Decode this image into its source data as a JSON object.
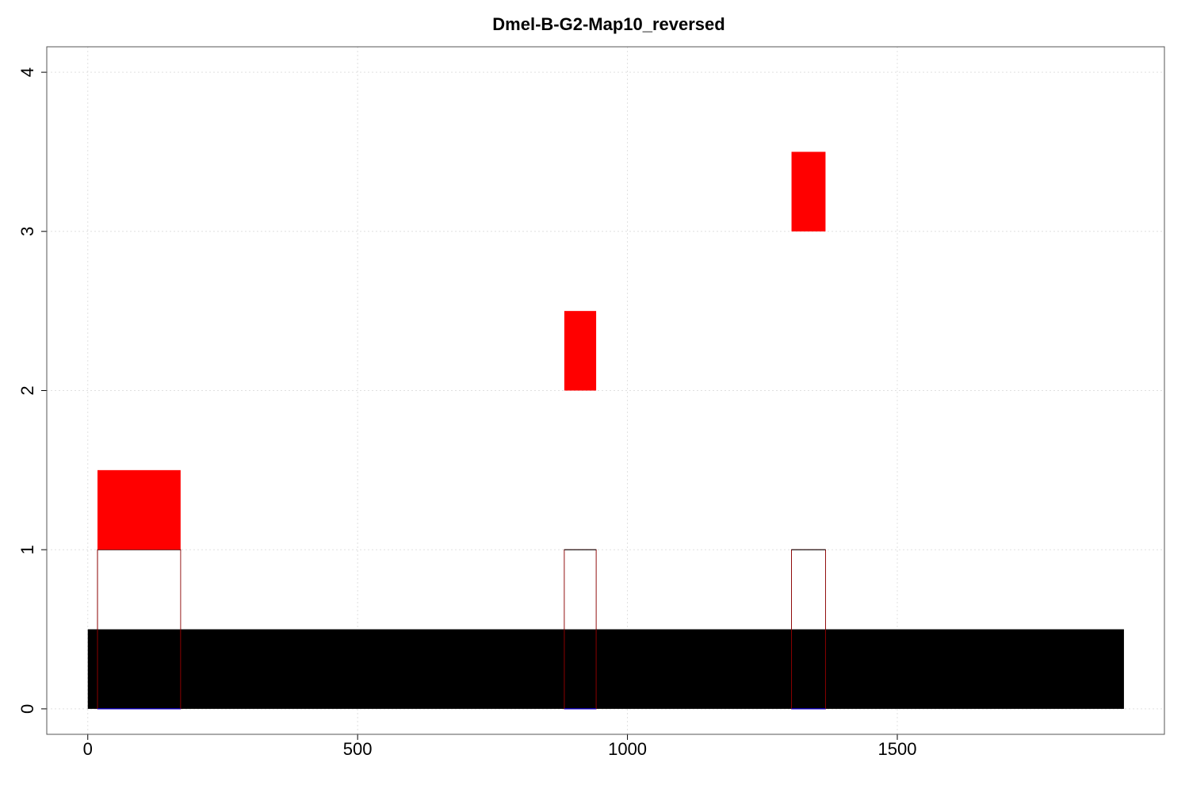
{
  "chart_data": {
    "type": "bar",
    "title": "Dmel-B-G2-Map10_reversed",
    "xlabel": "",
    "ylabel": "",
    "xlim": [
      -76,
      1995
    ],
    "ylim": [
      -0.16,
      4.16
    ],
    "x_ticks": [
      0,
      500,
      1000,
      1500
    ],
    "y_ticks": [
      0,
      1,
      2,
      3,
      4
    ],
    "grid": true,
    "legend": "none",
    "colors": {
      "background_bar": "#000000",
      "outline_bar": "#8b0000",
      "red_block": "#ff0000",
      "baseline": "#0000ff"
    },
    "background_bar": {
      "x0": 0,
      "x1": 1920,
      "y0": 0,
      "y1": 0.5
    },
    "outline_bars": [
      {
        "x0": 18,
        "x1": 172,
        "y0": 0,
        "y1": 1
      },
      {
        "x0": 883,
        "x1": 942,
        "y0": 0,
        "y1": 1
      },
      {
        "x0": 1304,
        "x1": 1367,
        "y0": 0,
        "y1": 1
      }
    ],
    "red_blocks": [
      {
        "x0": 18,
        "x1": 172,
        "y0": 1,
        "y1": 1.5
      },
      {
        "x0": 883,
        "x1": 942,
        "y0": 2,
        "y1": 2.5
      },
      {
        "x0": 1304,
        "x1": 1367,
        "y0": 3,
        "y1": 3.5
      }
    ]
  }
}
